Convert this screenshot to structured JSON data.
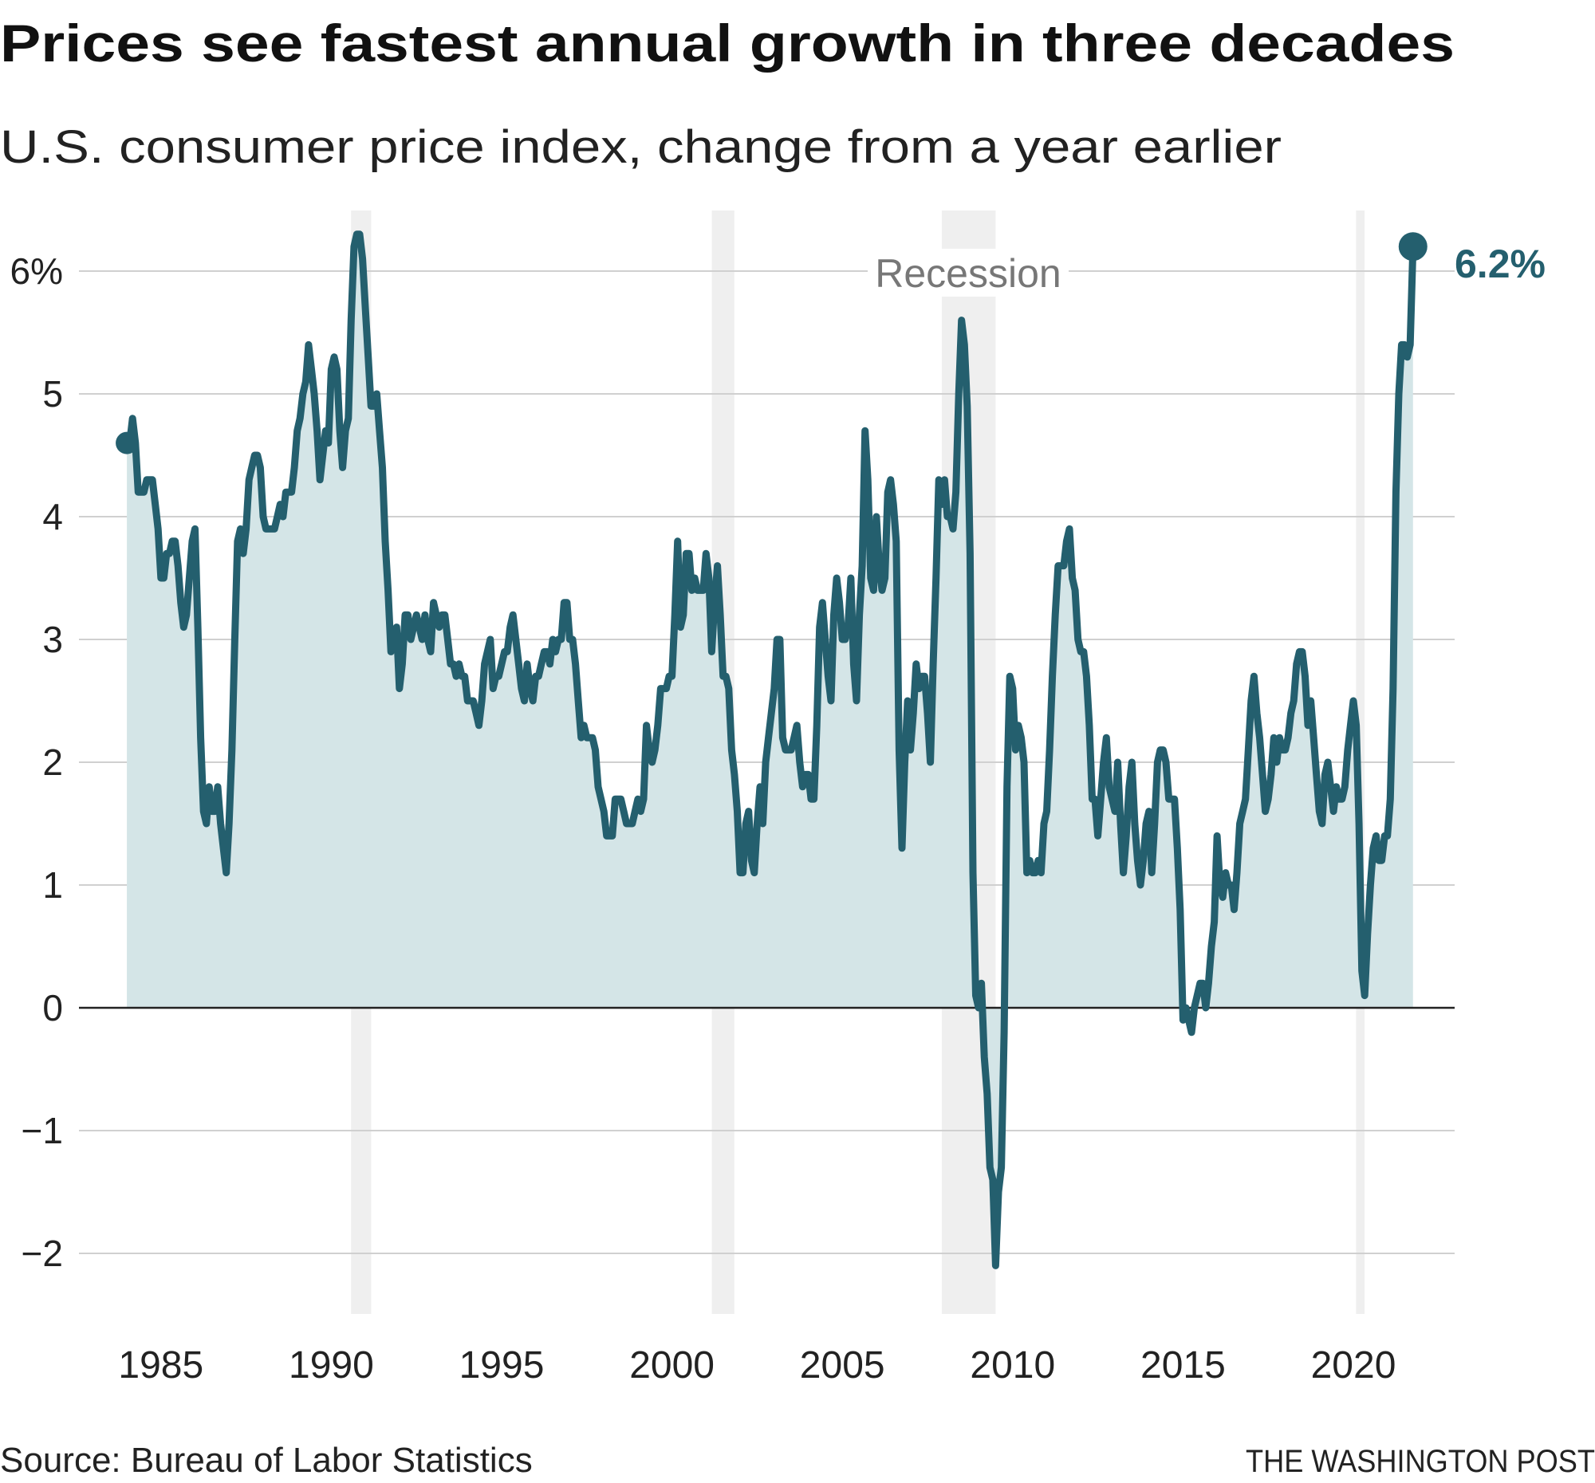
{
  "header": {
    "title": "Prices see fastest annual growth in three decades",
    "subtitle": "U.S. consumer price index, change from a year earlier"
  },
  "footer": {
    "source": "Source: Bureau of Labor Statistics",
    "credit": "THE WASHINGTON POST"
  },
  "colors": {
    "line": "#245f6e",
    "area": "#d4e5e7",
    "recession": "#efefef",
    "grid": "#d0d0d0",
    "zero": "#222222"
  },
  "chart_data": {
    "type": "area",
    "title": "Prices see fastest annual growth in three decades",
    "subtitle": "U.S. consumer price index, change from a year earlier",
    "ylabel": "",
    "xlabel": "",
    "ylim": [
      -2.5,
      6.5
    ],
    "xlim": [
      1983,
      2023
    ],
    "grid": true,
    "yticks": [
      6,
      5,
      4,
      3,
      2,
      1,
      0,
      -1,
      -2
    ],
    "ytick_labels": [
      "6%",
      "5",
      "4",
      "3",
      "2",
      "1",
      "0",
      "−1",
      "−2"
    ],
    "xticks": [
      1985,
      1990,
      1995,
      2000,
      2005,
      2010,
      2015,
      2020
    ],
    "xtick_labels": [
      "1985",
      "1990",
      "1995",
      "2000",
      "2005",
      "2010",
      "2015",
      "2020"
    ],
    "recession_label": "Recession",
    "recessions": [
      [
        1990.58,
        1991.17
      ],
      [
        2001.17,
        2001.83
      ],
      [
        2007.92,
        2009.5
      ],
      [
        2020.08,
        2020.33
      ]
    ],
    "end_label": "6.2%",
    "frequency": "monthly",
    "series": [
      {
        "year": 1984,
        "values": [
          4.6,
          4.6,
          4.8,
          4.6,
          4.2,
          4.2,
          4.2,
          4.3,
          4.3,
          4.3,
          4.1,
          3.9
        ]
      },
      {
        "year": 1985,
        "values": [
          3.5,
          3.5,
          3.7,
          3.7,
          3.8,
          3.8,
          3.6,
          3.3,
          3.1,
          3.2,
          3.5,
          3.8
        ]
      },
      {
        "year": 1986,
        "values": [
          3.9,
          3.1,
          2.2,
          1.6,
          1.5,
          1.8,
          1.6,
          1.6,
          1.8,
          1.5,
          1.3,
          1.1
        ]
      },
      {
        "year": 1987,
        "values": [
          1.5,
          2.1,
          3.0,
          3.8,
          3.9,
          3.7,
          3.9,
          4.3,
          4.4,
          4.5,
          4.5,
          4.4
        ]
      },
      {
        "year": 1988,
        "values": [
          4.0,
          3.9,
          3.9,
          3.9,
          3.9,
          4.0,
          4.1,
          4.0,
          4.2,
          4.2,
          4.2,
          4.4
        ]
      },
      {
        "year": 1989,
        "values": [
          4.7,
          4.8,
          5.0,
          5.1,
          5.4,
          5.2,
          5.0,
          4.7,
          4.3,
          4.5,
          4.7,
          4.6
        ]
      },
      {
        "year": 1990,
        "values": [
          5.2,
          5.3,
          5.2,
          4.7,
          4.4,
          4.7,
          4.8,
          5.6,
          6.2,
          6.3,
          6.3,
          6.1
        ]
      },
      {
        "year": 1991,
        "values": [
          5.7,
          5.3,
          4.9,
          4.9,
          5.0,
          4.7,
          4.4,
          3.8,
          3.4,
          2.9,
          3.0,
          3.1
        ]
      },
      {
        "year": 1992,
        "values": [
          2.6,
          2.8,
          3.2,
          3.2,
          3.0,
          3.1,
          3.2,
          3.1,
          3.0,
          3.2,
          3.0,
          2.9
        ]
      },
      {
        "year": 1993,
        "values": [
          3.3,
          3.2,
          3.1,
          3.2,
          3.2,
          3.0,
          2.8,
          2.8,
          2.7,
          2.8,
          2.7,
          2.7
        ]
      },
      {
        "year": 1994,
        "values": [
          2.5,
          2.5,
          2.5,
          2.4,
          2.3,
          2.5,
          2.8,
          2.9,
          3.0,
          2.6,
          2.7,
          2.7
        ]
      },
      {
        "year": 1995,
        "values": [
          2.8,
          2.9,
          2.9,
          3.1,
          3.2,
          3.0,
          2.8,
          2.6,
          2.5,
          2.8,
          2.6,
          2.5
        ]
      },
      {
        "year": 1996,
        "values": [
          2.7,
          2.7,
          2.8,
          2.9,
          2.9,
          2.8,
          3.0,
          2.9,
          3.0,
          3.0,
          3.3,
          3.3
        ]
      },
      {
        "year": 1997,
        "values": [
          3.0,
          3.0,
          2.8,
          2.5,
          2.2,
          2.3,
          2.2,
          2.2,
          2.2,
          2.1,
          1.8,
          1.7
        ]
      },
      {
        "year": 1998,
        "values": [
          1.6,
          1.4,
          1.4,
          1.4,
          1.7,
          1.7,
          1.7,
          1.6,
          1.5,
          1.5,
          1.5,
          1.6
        ]
      },
      {
        "year": 1999,
        "values": [
          1.7,
          1.6,
          1.7,
          2.3,
          2.1,
          2.0,
          2.1,
          2.3,
          2.6,
          2.6,
          2.6,
          2.7
        ]
      },
      {
        "year": 2000,
        "values": [
          2.7,
          3.2,
          3.8,
          3.1,
          3.2,
          3.7,
          3.7,
          3.4,
          3.5,
          3.4,
          3.4,
          3.4
        ]
      },
      {
        "year": 2001,
        "values": [
          3.7,
          3.5,
          2.9,
          3.3,
          3.6,
          3.2,
          2.7,
          2.7,
          2.6,
          2.1,
          1.9,
          1.6
        ]
      },
      {
        "year": 2002,
        "values": [
          1.1,
          1.1,
          1.5,
          1.6,
          1.2,
          1.1,
          1.5,
          1.8,
          1.5,
          2.0,
          2.2,
          2.4
        ]
      },
      {
        "year": 2003,
        "values": [
          2.6,
          3.0,
          3.0,
          2.2,
          2.1,
          2.1,
          2.1,
          2.2,
          2.3,
          2.0,
          1.8,
          1.9
        ]
      },
      {
        "year": 2004,
        "values": [
          1.9,
          1.7,
          1.7,
          2.3,
          3.1,
          3.3,
          3.0,
          2.7,
          2.5,
          3.2,
          3.5,
          3.3
        ]
      },
      {
        "year": 2005,
        "values": [
          3.0,
          3.0,
          3.1,
          3.5,
          2.8,
          2.5,
          3.2,
          3.6,
          4.7,
          4.3,
          3.5,
          3.4
        ]
      },
      {
        "year": 2006,
        "values": [
          4.0,
          3.6,
          3.4,
          3.5,
          4.2,
          4.3,
          4.1,
          3.8,
          2.1,
          1.3,
          2.0,
          2.5
        ]
      },
      {
        "year": 2007,
        "values": [
          2.1,
          2.4,
          2.8,
          2.6,
          2.7,
          2.7,
          2.4,
          2.0,
          2.8,
          3.5,
          4.3,
          4.1
        ]
      },
      {
        "year": 2008,
        "values": [
          4.3,
          4.0,
          4.0,
          3.9,
          4.2,
          5.0,
          5.6,
          5.4,
          4.9,
          3.7,
          1.1,
          0.1
        ]
      },
      {
        "year": 2009,
        "values": [
          0.0,
          0.2,
          -0.4,
          -0.7,
          -1.3,
          -1.4,
          -2.1,
          -1.5,
          -1.3,
          -0.2,
          1.8,
          2.7
        ]
      },
      {
        "year": 2010,
        "values": [
          2.6,
          2.1,
          2.3,
          2.2,
          2.0,
          1.1,
          1.2,
          1.1,
          1.1,
          1.2,
          1.1,
          1.5
        ]
      },
      {
        "year": 2011,
        "values": [
          1.6,
          2.1,
          2.7,
          3.2,
          3.6,
          3.6,
          3.6,
          3.8,
          3.9,
          3.5,
          3.4,
          3.0
        ]
      },
      {
        "year": 2012,
        "values": [
          2.9,
          2.9,
          2.7,
          2.3,
          1.7,
          1.7,
          1.4,
          1.7,
          2.0,
          2.2,
          1.8,
          1.7
        ]
      },
      {
        "year": 2013,
        "values": [
          1.6,
          2.0,
          1.5,
          1.1,
          1.4,
          1.8,
          2.0,
          1.5,
          1.2,
          1.0,
          1.2,
          1.5
        ]
      },
      {
        "year": 2014,
        "values": [
          1.6,
          1.1,
          1.5,
          2.0,
          2.1,
          2.1,
          2.0,
          1.7,
          1.7,
          1.7,
          1.3,
          0.8
        ]
      },
      {
        "year": 2015,
        "values": [
          -0.1,
          0.0,
          -0.1,
          -0.2,
          0.0,
          0.1,
          0.2,
          0.2,
          0.0,
          0.2,
          0.5,
          0.7
        ]
      },
      {
        "year": 2016,
        "values": [
          1.4,
          1.0,
          0.9,
          1.1,
          1.0,
          1.0,
          0.8,
          1.1,
          1.5,
          1.6,
          1.7,
          2.1
        ]
      },
      {
        "year": 2017,
        "values": [
          2.5,
          2.7,
          2.4,
          2.2,
          1.9,
          1.6,
          1.7,
          1.9,
          2.2,
          2.0,
          2.2,
          2.1
        ]
      },
      {
        "year": 2018,
        "values": [
          2.1,
          2.2,
          2.4,
          2.5,
          2.8,
          2.9,
          2.9,
          2.7,
          2.3,
          2.5,
          2.2,
          1.9
        ]
      },
      {
        "year": 2019,
        "values": [
          1.6,
          1.5,
          1.9,
          2.0,
          1.8,
          1.6,
          1.8,
          1.7,
          1.7,
          1.8,
          2.1,
          2.3
        ]
      },
      {
        "year": 2020,
        "values": [
          2.5,
          2.3,
          1.5,
          0.3,
          0.1,
          0.6,
          1.0,
          1.3,
          1.4,
          1.2,
          1.2,
          1.4
        ]
      },
      {
        "year": 2021,
        "values": [
          1.4,
          1.7,
          2.6,
          4.2,
          5.0,
          5.4,
          5.4,
          5.3,
          5.4,
          6.2
        ]
      }
    ]
  }
}
